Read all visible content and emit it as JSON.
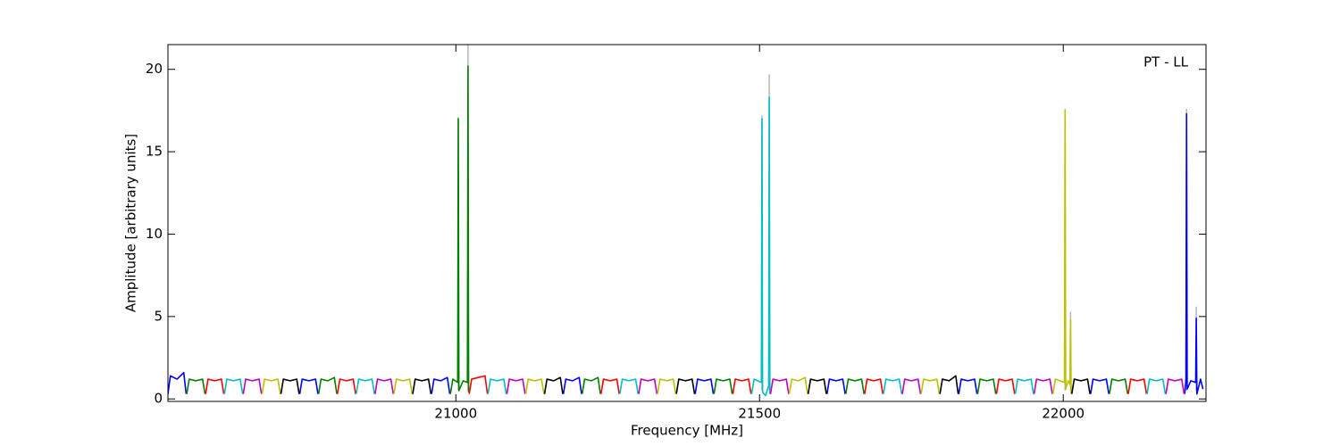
{
  "chart_data": {
    "type": "line",
    "xlabel": "Frequency [MHz]",
    "ylabel": "Amplitude [arbitrary units]",
    "annotation": "PT - LL",
    "xlim": [
      20526,
      22235
    ],
    "ylim": [
      -0.15,
      21.5
    ],
    "xticks": [
      21000,
      21500,
      22000
    ],
    "yticks": [
      0,
      5,
      10,
      15,
      20
    ],
    "series": [
      {
        "color": "#bbbbbb",
        "x": [
          21004,
          21004,
          21004,
          21020,
          21020,
          21020,
          21504,
          21504,
          21504,
          21516,
          21516,
          21516,
          22003,
          22003,
          22003,
          22012,
          22012,
          22012,
          22203,
          22203,
          22203,
          22219,
          22219
        ],
        "values": [
          0.5,
          17.1,
          null,
          0.5,
          21.5,
          null,
          0.5,
          17.2,
          null,
          0.5,
          19.7,
          null,
          0.5,
          17.6,
          null,
          0.5,
          5.3,
          null,
          0.5,
          17.6,
          null,
          0.5,
          5.6
        ]
      },
      {
        "color": "#0000ff",
        "x": [
          20526,
          20530,
          20541,
          20552,
          20556,
          20556,
          20743,
          20747,
          20758,
          20769,
          20773,
          20773,
          20960,
          20964,
          20975,
          20986,
          20990,
          20990,
          21177,
          21181,
          21192,
          21203,
          21207,
          21207,
          21394,
          21398,
          21409,
          21420,
          21424,
          21424,
          21611,
          21615,
          21626,
          21637,
          21641,
          21641,
          21828,
          21832,
          21843,
          21854,
          21858,
          21858,
          22045,
          22049,
          22060,
          22071,
          22075,
          22075,
          22200,
          22202,
          22203,
          22204,
          22210,
          22218,
          22219,
          22220,
          22226,
          22230
        ],
        "values": [
          0.3,
          1.4,
          1.2,
          1.6,
          0.3,
          null,
          0.3,
          1.2,
          1.1,
          1.2,
          0.3,
          null,
          0.3,
          1.2,
          1.1,
          1.3,
          0.3,
          null,
          0.3,
          1.2,
          1.1,
          1.3,
          0.3,
          null,
          0.3,
          1.2,
          1.1,
          1.2,
          0.3,
          null,
          0.3,
          1.2,
          1.1,
          1.2,
          0.3,
          null,
          0.3,
          1.2,
          1.1,
          1.2,
          0.3,
          null,
          0.3,
          1.2,
          1.1,
          1.2,
          0.3,
          null,
          0.3,
          1.2,
          17.3,
          0.6,
          1.1,
          1.0,
          4.9,
          0.3,
          1.2,
          0.6
        ]
      },
      {
        "color": "#008000",
        "x": [
          20557,
          20561,
          20572,
          20583,
          20587,
          20587,
          20774,
          20778,
          20789,
          20800,
          20804,
          20804,
          20991,
          20995,
          21003,
          21004,
          21005,
          21012,
          21019,
          21020,
          21021,
          21021,
          21208,
          21212,
          21223,
          21234,
          21238,
          21238,
          21425,
          21429,
          21440,
          21451,
          21455,
          21455,
          21642,
          21646,
          21657,
          21668,
          21672,
          21672,
          21859,
          21863,
          21874,
          21885,
          21889,
          21889,
          22076,
          22080,
          22091,
          22102,
          22106
        ],
        "values": [
          0.3,
          1.2,
          1.1,
          1.2,
          0.3,
          null,
          0.3,
          1.2,
          1.1,
          1.3,
          0.3,
          null,
          0.3,
          1.2,
          1.0,
          17.0,
          0.5,
          1.1,
          1.0,
          20.2,
          0.4,
          null,
          0.3,
          1.2,
          1.1,
          1.3,
          0.3,
          null,
          0.3,
          1.2,
          1.1,
          1.2,
          0.3,
          null,
          0.3,
          1.2,
          1.1,
          1.2,
          0.3,
          null,
          0.3,
          1.2,
          1.1,
          1.2,
          0.3,
          null,
          0.3,
          1.2,
          1.1,
          1.2,
          0.3
        ]
      },
      {
        "color": "#ff0000",
        "x": [
          20588,
          20592,
          20603,
          20614,
          20618,
          20618,
          20805,
          20809,
          20820,
          20831,
          20835,
          20835,
          21022,
          21026,
          21037,
          21048,
          21052,
          21052,
          21239,
          21243,
          21254,
          21265,
          21269,
          21269,
          21456,
          21460,
          21471,
          21482,
          21486,
          21486,
          21673,
          21677,
          21688,
          21699,
          21703,
          21703,
          21890,
          21894,
          21905,
          21916,
          21920,
          21920,
          22107,
          22111,
          22122,
          22133,
          22137
        ],
        "values": [
          0.3,
          1.2,
          1.1,
          1.2,
          0.3,
          null,
          0.3,
          1.2,
          1.1,
          1.2,
          0.3,
          null,
          0.3,
          1.2,
          1.3,
          1.4,
          0.3,
          null,
          0.3,
          1.2,
          1.1,
          1.2,
          0.3,
          null,
          0.3,
          1.2,
          1.1,
          1.2,
          0.3,
          null,
          0.3,
          1.2,
          1.1,
          1.2,
          0.3,
          null,
          0.3,
          1.2,
          1.1,
          1.2,
          0.3,
          null,
          0.3,
          1.2,
          1.1,
          1.2,
          0.3
        ]
      },
      {
        "color": "#00bfbf",
        "x": [
          20619,
          20623,
          20634,
          20645,
          20649,
          20649,
          20836,
          20840,
          20851,
          20862,
          20866,
          20866,
          21053,
          21057,
          21068,
          21079,
          21083,
          21083,
          21270,
          21274,
          21285,
          21296,
          21300,
          21300,
          21487,
          21491,
          21503,
          21504,
          21505,
          21510,
          21515,
          21516,
          21517,
          21517,
          21704,
          21708,
          21719,
          21730,
          21734,
          21734,
          21921,
          21925,
          21936,
          21947,
          21951,
          21951,
          22138,
          22142,
          22153,
          22164,
          22168
        ],
        "values": [
          0.3,
          1.2,
          1.1,
          1.2,
          0.3,
          null,
          0.3,
          1.2,
          1.1,
          1.2,
          0.3,
          null,
          0.3,
          1.2,
          1.1,
          1.2,
          0.3,
          null,
          0.3,
          1.2,
          1.1,
          1.2,
          0.3,
          null,
          0.3,
          1.2,
          1.0,
          17.0,
          0.4,
          0.2,
          0.8,
          18.3,
          0.3,
          null,
          0.3,
          1.2,
          1.1,
          1.2,
          0.3,
          null,
          0.3,
          1.2,
          1.1,
          1.2,
          0.3,
          null,
          0.3,
          1.2,
          1.1,
          1.2,
          0.3
        ]
      },
      {
        "color": "#bf00bf",
        "x": [
          20650,
          20654,
          20665,
          20676,
          20680,
          20680,
          20867,
          20871,
          20882,
          20893,
          20897,
          20897,
          21084,
          21088,
          21099,
          21110,
          21114,
          21114,
          21301,
          21305,
          21316,
          21327,
          21331,
          21331,
          21518,
          21522,
          21533,
          21544,
          21548,
          21548,
          21735,
          21739,
          21750,
          21761,
          21765,
          21765,
          21952,
          21956,
          21967,
          21978,
          21982,
          21982,
          22169,
          22173,
          22184,
          22195,
          22199
        ],
        "values": [
          0.3,
          1.2,
          1.1,
          1.2,
          0.3,
          null,
          0.3,
          1.2,
          1.1,
          1.2,
          0.3,
          null,
          0.3,
          1.2,
          1.1,
          1.2,
          0.3,
          null,
          0.3,
          1.2,
          1.1,
          1.2,
          0.3,
          null,
          0.3,
          1.2,
          1.1,
          1.2,
          0.3,
          null,
          0.3,
          1.2,
          1.1,
          1.2,
          0.3,
          null,
          0.3,
          1.2,
          1.1,
          1.2,
          0.3,
          null,
          0.3,
          1.2,
          1.1,
          1.2,
          0.3
        ]
      },
      {
        "color": "#bfbf00",
        "x": [
          20681,
          20685,
          20696,
          20707,
          20711,
          20711,
          20898,
          20902,
          20913,
          20924,
          20928,
          20928,
          21115,
          21119,
          21130,
          21141,
          21145,
          21145,
          21332,
          21336,
          21347,
          21358,
          21362,
          21362,
          21549,
          21553,
          21564,
          21575,
          21579,
          21579,
          21766,
          21770,
          21781,
          21792,
          21796,
          21796,
          21983,
          21987,
          22002,
          22003,
          22004,
          22008,
          22011,
          22012,
          22013
        ],
        "values": [
          0.3,
          1.2,
          1.1,
          1.2,
          0.3,
          null,
          0.3,
          1.2,
          1.1,
          1.2,
          0.3,
          null,
          0.3,
          1.2,
          1.1,
          1.2,
          0.3,
          null,
          0.3,
          1.2,
          1.1,
          1.2,
          0.3,
          null,
          0.3,
          1.2,
          1.1,
          1.3,
          0.3,
          null,
          0.3,
          1.2,
          1.1,
          1.2,
          0.3,
          null,
          0.3,
          1.2,
          1.0,
          17.5,
          0.6,
          1.1,
          0.9,
          4.8,
          0.3
        ]
      },
      {
        "color": "#000000",
        "x": [
          20712,
          20716,
          20727,
          20738,
          20742,
          20742,
          20929,
          20933,
          20944,
          20955,
          20959,
          20959,
          21146,
          21150,
          21161,
          21172,
          21176,
          21176,
          21363,
          21367,
          21378,
          21389,
          21393,
          21393,
          21580,
          21584,
          21595,
          21606,
          21610,
          21610,
          21797,
          21801,
          21812,
          21823,
          21827,
          21827,
          22014,
          22018,
          22029,
          22040,
          22044
        ],
        "values": [
          0.3,
          1.2,
          1.1,
          1.2,
          0.3,
          null,
          0.3,
          1.2,
          1.1,
          1.2,
          0.3,
          null,
          0.3,
          1.2,
          1.1,
          1.3,
          0.3,
          null,
          0.3,
          1.2,
          1.1,
          1.2,
          0.3,
          null,
          0.3,
          1.2,
          1.1,
          1.2,
          0.3,
          null,
          0.3,
          1.2,
          1.1,
          1.4,
          0.3,
          null,
          0.3,
          1.2,
          1.1,
          1.2,
          0.3
        ]
      }
    ]
  }
}
